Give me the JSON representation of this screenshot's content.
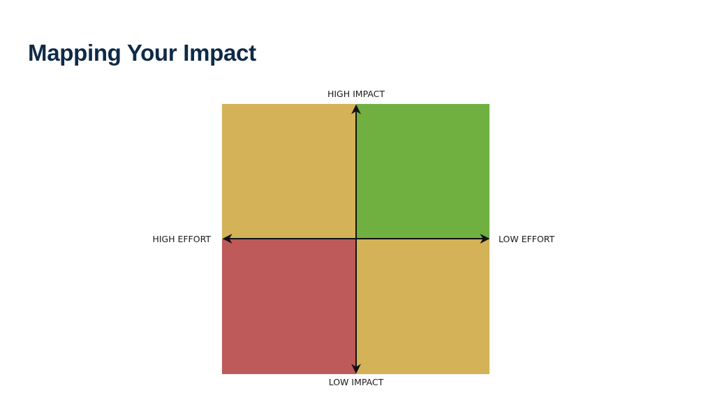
{
  "slide": {
    "title": "Mapping Your Impact"
  },
  "matrix": {
    "labels": {
      "top": "HIGH IMPACT",
      "bottom": "LOW IMPACT",
      "left": "HIGH EFFORT",
      "right": "LOW EFFORT"
    },
    "colors": {
      "top_left": "#d4b257",
      "top_right": "#70b041",
      "bottom_left": "#be5a5a",
      "bottom_right": "#d4b257",
      "axis": "#111111"
    }
  }
}
